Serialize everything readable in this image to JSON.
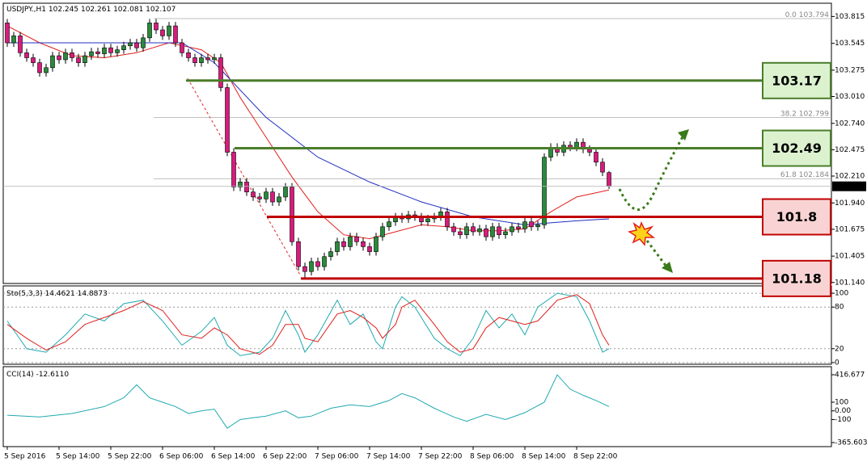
{
  "chart_data": [
    {
      "type": "candlestick",
      "symbol": "USDJPY.,H1",
      "open": [
        103.75,
        103.55,
        103.62,
        103.45,
        103.4,
        103.35,
        103.25,
        103.3,
        103.42,
        103.38,
        103.45,
        103.4,
        103.35,
        103.42,
        103.46,
        103.44,
        103.5,
        103.45,
        103.48,
        103.52,
        103.55,
        103.5,
        103.6,
        103.75,
        103.68,
        103.62,
        103.72,
        103.55,
        103.45,
        103.4,
        103.35,
        103.4,
        103.38,
        103.4,
        103.1,
        102.45,
        102.1,
        102.15,
        102.05,
        102.0,
        101.98,
        102.05,
        101.95,
        102.0,
        102.1,
        101.55,
        101.3,
        101.25,
        101.35,
        101.3,
        101.4,
        101.45,
        101.55,
        101.5,
        101.6,
        101.55,
        101.5,
        101.45,
        101.6,
        101.7,
        101.75,
        101.8,
        101.78,
        101.82,
        101.8,
        101.75,
        101.78,
        101.8,
        101.85,
        101.7,
        101.65,
        101.62,
        101.7,
        101.65,
        101.68,
        101.6,
        101.7,
        101.62,
        101.65,
        101.7,
        101.68,
        101.75,
        101.7,
        101.72,
        102.4,
        102.5,
        102.45,
        102.52,
        102.5,
        102.55,
        102.48,
        102.45,
        102.35,
        102.245
      ],
      "high": [
        103.79,
        103.66,
        103.66,
        103.49,
        103.44,
        103.39,
        103.34,
        103.46,
        103.46,
        103.49,
        103.49,
        103.44,
        103.46,
        103.5,
        103.5,
        103.54,
        103.54,
        103.52,
        103.56,
        103.59,
        103.59,
        103.64,
        103.79,
        103.79,
        103.72,
        103.76,
        103.76,
        103.59,
        103.49,
        103.44,
        103.44,
        103.44,
        103.44,
        103.44,
        103.14,
        102.49,
        102.19,
        102.19,
        102.09,
        102.04,
        102.09,
        102.09,
        102.04,
        102.14,
        102.14,
        101.59,
        101.34,
        101.39,
        101.39,
        101.44,
        101.49,
        101.59,
        101.59,
        101.64,
        101.64,
        101.59,
        101.54,
        101.64,
        101.74,
        101.79,
        101.84,
        101.84,
        101.86,
        101.86,
        101.84,
        101.82,
        101.84,
        101.89,
        101.89,
        101.74,
        101.69,
        101.74,
        101.74,
        101.72,
        101.72,
        101.74,
        101.74,
        101.69,
        101.74,
        101.74,
        101.79,
        101.79,
        101.76,
        102.44,
        102.54,
        102.54,
        102.56,
        102.56,
        102.59,
        102.59,
        102.52,
        102.49,
        102.39,
        102.261
      ],
      "low": [
        103.51,
        103.51,
        103.41,
        103.36,
        103.31,
        103.21,
        103.21,
        103.26,
        103.34,
        103.34,
        103.36,
        103.31,
        103.31,
        103.38,
        103.4,
        103.4,
        103.41,
        103.41,
        103.44,
        103.48,
        103.46,
        103.46,
        103.56,
        103.64,
        103.58,
        103.58,
        103.51,
        103.41,
        103.36,
        103.31,
        103.31,
        103.34,
        103.34,
        103.06,
        102.41,
        102.06,
        102.06,
        102.01,
        101.96,
        101.94,
        101.94,
        101.91,
        101.91,
        101.96,
        101.51,
        101.26,
        101.18,
        101.21,
        101.26,
        101.26,
        101.36,
        101.41,
        101.46,
        101.46,
        101.51,
        101.46,
        101.41,
        101.41,
        101.56,
        101.66,
        101.71,
        101.74,
        101.74,
        101.76,
        101.71,
        101.71,
        101.74,
        101.76,
        101.66,
        101.61,
        101.58,
        101.58,
        101.61,
        101.61,
        101.56,
        101.56,
        101.58,
        101.58,
        101.61,
        101.64,
        101.64,
        101.66,
        101.66,
        101.68,
        102.36,
        102.41,
        102.41,
        102.46,
        102.46,
        102.44,
        102.41,
        102.31,
        102.21,
        102.081
      ],
      "close": [
        103.55,
        103.62,
        103.45,
        103.4,
        103.35,
        103.25,
        103.3,
        103.42,
        103.38,
        103.45,
        103.4,
        103.35,
        103.42,
        103.46,
        103.44,
        103.5,
        103.45,
        103.48,
        103.52,
        103.55,
        103.5,
        103.6,
        103.75,
        103.68,
        103.62,
        103.72,
        103.55,
        103.45,
        103.4,
        103.35,
        103.4,
        103.38,
        103.4,
        103.1,
        102.45,
        102.1,
        102.15,
        102.05,
        102.0,
        101.98,
        102.05,
        101.95,
        102.0,
        102.1,
        101.55,
        101.3,
        101.25,
        101.35,
        101.3,
        101.4,
        101.45,
        101.55,
        101.5,
        101.6,
        101.55,
        101.5,
        101.45,
        101.6,
        101.7,
        101.75,
        101.8,
        101.78,
        101.82,
        101.8,
        101.75,
        101.78,
        101.8,
        101.85,
        101.7,
        101.65,
        101.62,
        101.7,
        101.65,
        101.68,
        101.6,
        101.7,
        101.62,
        101.65,
        101.7,
        101.68,
        101.75,
        101.7,
        101.72,
        102.4,
        102.5,
        102.45,
        102.52,
        102.5,
        102.55,
        102.48,
        102.45,
        102.35,
        102.25,
        102.107
      ],
      "up_color": "#2a8a3a",
      "down_color": "#d81b7d",
      "xlim": [
        -0.625,
        127.375
      ],
      "xticks": [
        {
          "value": 0,
          "label": "5 Sep 2016"
        },
        {
          "value": 8,
          "label": "5 Sep 14:00"
        },
        {
          "value": 16,
          "label": "5 Sep 22:00"
        },
        {
          "value": 24,
          "label": "6 Sep 06:00"
        },
        {
          "value": 32,
          "label": "6 Sep 14:00"
        },
        {
          "value": 40,
          "label": "6 Sep 22:00"
        },
        {
          "value": 48,
          "label": "7 Sep 06:00"
        },
        {
          "value": 56,
          "label": "7 Sep 14:00"
        },
        {
          "value": 64,
          "label": "7 Sep 22:00"
        },
        {
          "value": 72,
          "label": "8 Sep 06:00"
        },
        {
          "value": 80,
          "label": "8 Sep 14:00"
        },
        {
          "value": 88,
          "label": "8 Sep 22:00"
        }
      ],
      "ylim": [
        101.13,
        103.94
      ],
      "yticks": [
        103.815,
        103.545,
        103.275,
        {
          "value": 103.01,
          "label": "103.010"
        },
        {
          "value": 102.74,
          "label": "102.740"
        },
        102.475,
        {
          "value": 102.21,
          "label": "102.210"
        },
        {
          "value": 101.94,
          "label": "101.940"
        },
        101.675,
        101.405,
        {
          "value": 101.14,
          "label": "101.140"
        }
      ],
      "moving_averages": [
        {
          "color": "#e0201c",
          "x": [
            0,
            5,
            10,
            15,
            20,
            25,
            30,
            33,
            36,
            40,
            44,
            48,
            52,
            56,
            60,
            64,
            68,
            72,
            76,
            80,
            84,
            88,
            93
          ],
          "values": [
            103.72,
            103.55,
            103.42,
            103.4,
            103.45,
            103.55,
            103.48,
            103.35,
            103.0,
            102.6,
            102.2,
            101.85,
            101.62,
            101.58,
            101.65,
            101.72,
            101.7,
            101.66,
            101.66,
            101.68,
            101.85,
            102.0,
            102.07
          ]
        },
        {
          "color": "#2030c0",
          "x": [
            0,
            10,
            20,
            27,
            32,
            40,
            48,
            56,
            64,
            72,
            80,
            88,
            93
          ],
          "values": [
            103.55,
            103.55,
            103.55,
            103.55,
            103.35,
            102.8,
            102.4,
            102.15,
            101.95,
            101.8,
            101.72,
            101.76,
            101.78
          ]
        }
      ],
      "levels": [
        {
          "value": 103.17,
          "color": "#4a7d2a",
          "fill": "#dcf2cf"
        },
        {
          "value": 102.49,
          "color": "#4a7d2a",
          "fill": "#dcf2cf"
        },
        {
          "value": 101.8,
          "color": "#c00000",
          "fill": "#f9d3d3"
        },
        {
          "value": 101.18,
          "color": "#c00000",
          "fill": "#f9d3d3"
        }
      ],
      "fib": [
        {
          "level": {
            "value": 0,
            "label": "0.0"
          },
          "price": 103.794
        },
        {
          "level": 38.2,
          "price": 102.799
        },
        {
          "level": 61.8,
          "price": 102.184
        }
      ]
    },
    {
      "type": "line",
      "title": "Sto(5,3,3)",
      "readout": [
        14.4621,
        14.8873
      ],
      "ylim": [
        -2.4,
        109.4
      ],
      "yticks": [
        100,
        80,
        20,
        0
      ],
      "grid": true,
      "series": [
        {
          "color": "#20aab0",
          "x": [
            0,
            3,
            6,
            9,
            12,
            15,
            18,
            21,
            24,
            27,
            30,
            32,
            34,
            36,
            39,
            41,
            43,
            45,
            46,
            48,
            51,
            53,
            55,
            57,
            58,
            60,
            61,
            63,
            66,
            68,
            70,
            72,
            74,
            76,
            78,
            80,
            82,
            85,
            88,
            90,
            92,
            93
          ],
          "values": [
            60,
            20,
            15,
            40,
            70,
            60,
            85,
            90,
            60,
            25,
            45,
            65,
            25,
            10,
            15,
            35,
            75,
            40,
            15,
            40,
            90,
            55,
            70,
            30,
            20,
            80,
            95,
            80,
            35,
            20,
            10,
            35,
            75,
            50,
            70,
            40,
            80,
            100,
            95,
            60,
            15,
            20
          ]
        },
        {
          "color": "#e0201c",
          "x": [
            0,
            3,
            6,
            9,
            12,
            15,
            18,
            21,
            24,
            27,
            30,
            32,
            34,
            36,
            39,
            41,
            43,
            45,
            46,
            48,
            51,
            53,
            55,
            57,
            58,
            60,
            61,
            63,
            66,
            68,
            70,
            72,
            74,
            76,
            78,
            80,
            82,
            85,
            88,
            90,
            92,
            93
          ],
          "values": [
            55,
            35,
            18,
            30,
            55,
            65,
            75,
            88,
            75,
            40,
            35,
            50,
            40,
            20,
            12,
            25,
            55,
            55,
            35,
            30,
            70,
            75,
            65,
            50,
            35,
            55,
            80,
            90,
            55,
            30,
            15,
            20,
            50,
            65,
            60,
            55,
            60,
            90,
            98,
            85,
            40,
            25
          ]
        }
      ]
    },
    {
      "type": "line",
      "title": "CCI(14)",
      "readout": [
        {
          "value": -12.611,
          "label": "-12.6110"
        }
      ],
      "ylim": [
        -402.8,
        500.5
      ],
      "yticks": [
        416.677,
        100,
        {
          "value": 0,
          "label": "0.00"
        },
        -100,
        -365.6037
      ],
      "grid": false,
      "series": [
        {
          "color": "#20aab0",
          "x": [
            0,
            5,
            10,
            15,
            18,
            20,
            22,
            24,
            26,
            28,
            30,
            32,
            34,
            36,
            38,
            40,
            43,
            45,
            47,
            50,
            53,
            56,
            59,
            61,
            63,
            66,
            69,
            71,
            74,
            77,
            80,
            83,
            85,
            87,
            89,
            91,
            93
          ],
          "values": [
            -50,
            -70,
            -30,
            50,
            150,
            300,
            150,
            100,
            50,
            -30,
            0,
            20,
            -200,
            -100,
            -80,
            -60,
            0,
            -80,
            -60,
            30,
            70,
            50,
            120,
            200,
            150,
            30,
            -70,
            -120,
            -40,
            -100,
            -20,
            100,
            416,
            250,
            180,
            120,
            50
          ]
        }
      ]
    }
  ]
}
